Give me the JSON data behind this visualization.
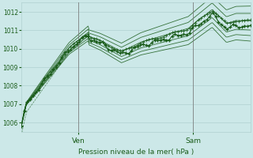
{
  "title": "Pression niveau de la mer( hPa )",
  "ylim": [
    1005.5,
    1012.5
  ],
  "xlim": [
    0,
    96
  ],
  "yticks": [
    1006,
    1007,
    1008,
    1009,
    1010,
    1011,
    1012
  ],
  "xtick_positions": [
    24,
    72
  ],
  "xtick_labels": [
    "Ven",
    "Sam"
  ],
  "vlines": [
    24,
    72
  ],
  "bg_color": "#cce8e8",
  "grid_color": "#b0d0d0",
  "line_color": "#1a5c1a",
  "title_color": "#1a5c1a",
  "tick_color": "#1a5c1a",
  "vline_color": "#7a7a7a"
}
